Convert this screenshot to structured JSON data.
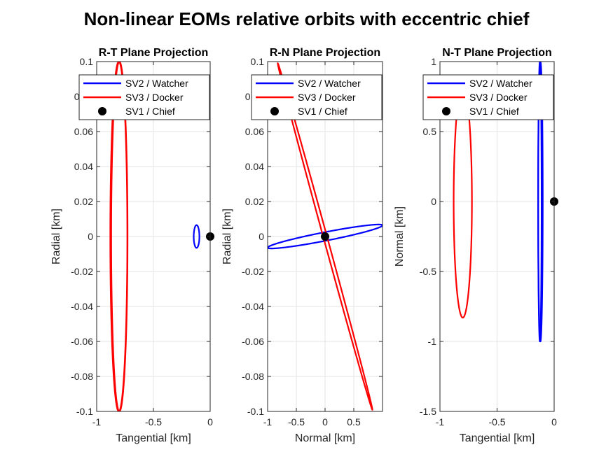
{
  "figure": {
    "title": "Non-linear EOMs relative orbits with eccentric chief"
  },
  "chart_data": [
    {
      "type": "line",
      "title": "R-T Plane Projection",
      "xlabel": "Tangential [km]",
      "ylabel": "Radial [km]",
      "xlim": [
        -1,
        0
      ],
      "ylim": [
        -0.1,
        0.1
      ],
      "xticks": [
        -1,
        -0.5,
        0
      ],
      "xtick_labels": [
        "-1",
        "-0.5",
        "0"
      ],
      "yticks": [
        -0.1,
        -0.08,
        -0.06,
        -0.04,
        -0.02,
        0,
        0.02,
        0.04,
        0.06,
        0.08,
        0.1
      ],
      "ytick_labels": [
        "-0.1",
        "-0.08",
        "-0.06",
        "-0.04",
        "-0.02",
        "0",
        "0.02",
        "0.04",
        "0.06",
        "0.08",
        "0.1"
      ],
      "grid": true,
      "legend_position": "top-right",
      "series": [
        {
          "name": "SV2 / Watcher",
          "color": "#0000ff",
          "kind": "line",
          "curves": [
            {
              "shape": "ellipse",
              "center": [
                -0.12,
                0
              ],
              "semi_axes": [
                0.025,
                0.0065
              ],
              "rotation_deg": 0
            }
          ]
        },
        {
          "name": "SV3 / Docker",
          "color": "#ff0000",
          "kind": "line",
          "curves": [
            {
              "shape": "ellipse",
              "center": [
                -0.805,
                0
              ],
              "semi_axes": [
                0.075,
                0.1
              ],
              "rotation_deg": 0
            },
            {
              "shape": "ellipse",
              "center": [
                -0.8,
                0
              ],
              "semi_axes": [
                0.072,
                0.1
              ],
              "rotation_deg": 0
            }
          ]
        },
        {
          "name": "SV1 / Chief",
          "color": "#000000",
          "kind": "marker",
          "points": [
            [
              0,
              0
            ]
          ]
        }
      ]
    },
    {
      "type": "line",
      "title": "R-N Plane Projection",
      "xlabel": "Normal [km]",
      "ylabel": "Radial [km]",
      "xlim": [
        -1,
        1
      ],
      "ylim": [
        -0.1,
        0.1
      ],
      "xticks": [
        -1,
        -0.5,
        0,
        0.5
      ],
      "xtick_labels": [
        "-1",
        "-0.5",
        "0",
        "0.5"
      ],
      "yticks": [
        -0.1,
        -0.08,
        -0.06,
        -0.04,
        -0.02,
        0,
        0.02,
        0.04,
        0.06,
        0.08,
        0.1
      ],
      "ytick_labels": [
        "-0.1",
        "-0.08",
        "-0.06",
        "-0.04",
        "-0.02",
        "0",
        "0.02",
        "0.04",
        "0.06",
        "0.08",
        "0.1"
      ],
      "grid": true,
      "legend_position": "top-right",
      "series": [
        {
          "name": "SV2 / Watcher",
          "color": "#0000ff",
          "kind": "line",
          "curves": [
            {
              "shape": "ellipse",
              "center": [
                0,
                0
              ],
              "semi_axes": [
                1.0,
                0.0025
              ],
              "rotation_deg": 0.365
            }
          ]
        },
        {
          "name": "SV3 / Docker",
          "color": "#ff0000",
          "kind": "line",
          "curves": [
            {
              "shape": "ellipse",
              "center": [
                0,
                0
              ],
              "semi_axes": [
                0.83,
                0.004
              ],
              "rotation_deg": -6.85
            }
          ]
        },
        {
          "name": "SV1 / Chief",
          "color": "#000000",
          "kind": "marker",
          "points": [
            [
              0,
              0
            ]
          ]
        }
      ]
    },
    {
      "type": "line",
      "title": "N-T Plane Projection",
      "xlabel": "Tangential [km]",
      "ylabel": "Normal [km]",
      "xlim": [
        -1,
        0
      ],
      "ylim": [
        -1.5,
        1
      ],
      "xticks": [
        -1,
        -0.5,
        0
      ],
      "xtick_labels": [
        "-1",
        "-0.5",
        "0"
      ],
      "yticks": [
        -1.5,
        -1,
        -0.5,
        0,
        0.5,
        1
      ],
      "ytick_labels": [
        "-1.5",
        "-1",
        "-0.5",
        "0",
        "0.5",
        "1"
      ],
      "grid": true,
      "legend_position": "top-right",
      "series": [
        {
          "name": "SV2 / Watcher",
          "color": "#0000ff",
          "kind": "line",
          "curves": [
            {
              "shape": "ellipse",
              "center": [
                -0.12,
                0
              ],
              "semi_axes": [
                0.02,
                1.0
              ],
              "rotation_deg": 0
            },
            {
              "shape": "ellipse",
              "center": [
                -0.125,
                0
              ],
              "semi_axes": [
                0.015,
                1.0
              ],
              "rotation_deg": 0
            }
          ]
        },
        {
          "name": "SV3 / Docker",
          "color": "#ff0000",
          "kind": "line",
          "curves": [
            {
              "shape": "ellipse",
              "center": [
                -0.8,
                0
              ],
              "semi_axes": [
                0.08,
                0.83
              ],
              "rotation_deg": 0
            }
          ]
        },
        {
          "name": "SV1 / Chief",
          "color": "#000000",
          "kind": "marker",
          "points": [
            [
              0,
              0
            ]
          ]
        }
      ]
    }
  ]
}
